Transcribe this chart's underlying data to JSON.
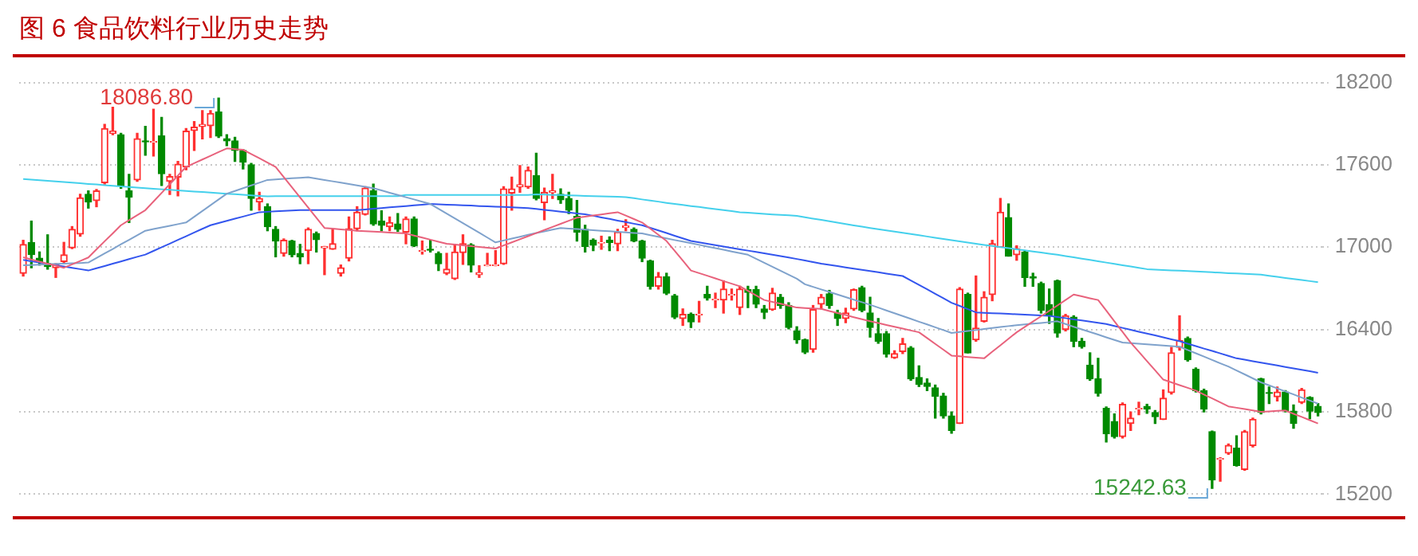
{
  "chart_data": {
    "type": "candlestick",
    "title": "图 6 食品饮料行业历史走势",
    "categories": [
      null,
      null,
      null,
      null,
      null,
      null,
      null,
      null,
      null,
      null,
      null,
      null,
      null,
      null,
      null,
      null,
      null,
      null,
      null,
      null,
      null,
      null,
      null,
      null,
      null,
      null,
      null,
      null,
      null,
      null,
      null,
      null,
      null,
      null,
      null,
      null,
      null,
      null,
      null,
      null,
      null,
      null,
      null,
      null,
      null,
      null,
      null,
      null,
      null,
      null,
      null,
      null,
      null,
      null,
      null,
      null,
      null,
      null,
      null,
      null,
      null,
      null,
      null,
      null,
      null,
      null,
      null,
      null,
      null,
      null,
      null,
      null,
      null,
      null,
      null,
      null,
      null,
      null,
      null,
      null,
      null,
      null,
      null,
      null,
      null,
      null,
      null,
      null,
      null,
      null,
      null,
      null,
      null,
      null,
      null,
      null,
      null,
      null,
      null,
      null,
      null,
      null,
      null,
      null,
      null,
      null,
      null,
      null,
      null,
      null,
      null,
      null,
      null,
      null,
      null,
      null,
      null,
      null,
      null,
      null,
      null,
      null,
      null,
      null,
      null,
      null,
      null,
      null,
      null,
      null,
      null,
      null,
      null,
      null,
      null,
      null,
      null,
      null,
      null,
      null,
      null,
      null,
      null,
      null,
      null,
      null,
      null,
      null,
      null,
      null,
      null,
      null,
      null,
      null,
      null,
      null,
      null,
      null,
      null,
      null
    ],
    "ohlc": [
      [
        16810,
        17050,
        16790,
        17020
      ],
      [
        17035,
        17190,
        16850,
        16946
      ],
      [
        16920,
        16965,
        16870,
        16890
      ],
      [
        16880,
        17090,
        16840,
        16860
      ],
      [
        16850,
        16880,
        16780,
        16870
      ],
      [
        16895,
        17035,
        16885,
        16945
      ],
      [
        16995,
        17150,
        16990,
        17130
      ],
      [
        17095,
        17385,
        17080,
        17360
      ],
      [
        17385,
        17410,
        17285,
        17330
      ],
      [
        17340,
        17420,
        17295,
        17410
      ],
      [
        17470,
        17895,
        17460,
        17865
      ],
      [
        17830,
        18020,
        17820,
        17845
      ],
      [
        17820,
        17830,
        17430,
        17445
      ],
      [
        17410,
        17530,
        17180,
        17365
      ],
      [
        17490,
        17830,
        17480,
        17790
      ],
      [
        17775,
        17880,
        17670,
        17768
      ],
      [
        17765,
        18005,
        17665,
        17770
      ],
      [
        17810,
        17945,
        17450,
        17535
      ],
      [
        17480,
        17530,
        17385,
        17515
      ],
      [
        17510,
        17625,
        17375,
        17605
      ],
      [
        17585,
        17865,
        17565,
        17845
      ],
      [
        17850,
        17915,
        17705,
        17875
      ],
      [
        17880,
        17995,
        17790,
        17895
      ],
      [
        17885,
        17995,
        17800,
        17975
      ],
      [
        17985,
        18086.8,
        17800,
        17810
      ],
      [
        17790,
        17820,
        17740,
        17775
      ],
      [
        17775,
        17800,
        17625,
        17705
      ],
      [
        17705,
        17710,
        17570,
        17620
      ],
      [
        17600,
        17610,
        17270,
        17355
      ],
      [
        17330,
        17400,
        17270,
        17355
      ],
      [
        17295,
        17315,
        17120,
        17150
      ],
      [
        17130,
        17150,
        16930,
        17045
      ],
      [
        16955,
        17060,
        16935,
        17050
      ],
      [
        17045,
        17050,
        16930,
        16945
      ],
      [
        16955,
        17020,
        16880,
        16930
      ],
      [
        16975,
        17140,
        16880,
        17130
      ],
      [
        17100,
        17110,
        16965,
        17055
      ],
      [
        16995,
        17005,
        16800,
        17005
      ],
      [
        16985,
        17130,
        16985,
        17025
      ],
      [
        16810,
        16870,
        16790,
        16850
      ],
      [
        16920,
        17220,
        16900,
        17135
      ],
      [
        17135,
        17295,
        17120,
        17255
      ],
      [
        17240,
        17440,
        17235,
        17430
      ],
      [
        17410,
        17460,
        17160,
        17170
      ],
      [
        17190,
        17265,
        17120,
        17160
      ],
      [
        17150,
        17220,
        17120,
        17180
      ],
      [
        17170,
        17245,
        17115,
        17130
      ],
      [
        17110,
        17220,
        17025,
        17205
      ],
      [
        17205,
        17220,
        17005,
        17010
      ],
      [
        16970,
        17045,
        16950,
        16975
      ],
      [
        16985,
        17050,
        16965,
        16978
      ],
      [
        16955,
        16965,
        16830,
        16880
      ],
      [
        16810,
        16955,
        16800,
        16840
      ],
      [
        16770,
        17020,
        16765,
        16965
      ],
      [
        16960,
        17090,
        16875,
        17025
      ],
      [
        17015,
        17025,
        16820,
        16870
      ],
      [
        16800,
        16865,
        16780,
        16815
      ],
      [
        16865,
        16955,
        16865,
        16870
      ],
      [
        16867,
        16975,
        16865,
        16872
      ],
      [
        16880,
        17440,
        16875,
        17425
      ],
      [
        17395,
        17510,
        17270,
        17425
      ],
      [
        17440,
        17595,
        17400,
        17455
      ],
      [
        17440,
        17585,
        17430,
        17560
      ],
      [
        17520,
        17685,
        17345,
        17355
      ],
      [
        17325,
        17430,
        17200,
        17400
      ],
      [
        17400,
        17530,
        17355,
        17410
      ],
      [
        17385,
        17425,
        17320,
        17345
      ],
      [
        17355,
        17400,
        17245,
        17270
      ],
      [
        17225,
        17340,
        17045,
        17110
      ],
      [
        17130,
        17160,
        16965,
        17005
      ],
      [
        17050,
        17060,
        16975,
        17015
      ],
      [
        17030,
        17080,
        16985,
        17035
      ],
      [
        17050,
        17075,
        16975,
        17035
      ],
      [
        17025,
        17130,
        16975,
        17110
      ],
      [
        17145,
        17200,
        17120,
        17155
      ],
      [
        17130,
        17140,
        17040,
        17045
      ],
      [
        17045,
        17050,
        16895,
        16920
      ],
      [
        16900,
        16905,
        16695,
        16715
      ],
      [
        16715,
        16815,
        16695,
        16785
      ],
      [
        16785,
        16810,
        16655,
        16665
      ],
      [
        16645,
        16655,
        16480,
        16490
      ],
      [
        16480,
        16550,
        16430,
        16510
      ],
      [
        16510,
        16520,
        16415,
        16455
      ],
      [
        16507,
        16605,
        16455,
        16512
      ],
      [
        16655,
        16715,
        16615,
        16630
      ],
      [
        16615,
        16665,
        16560,
        16620
      ],
      [
        16615,
        16755,
        16520,
        16695
      ],
      [
        16650,
        16695,
        16615,
        16655
      ],
      [
        16560,
        16715,
        16510,
        16695
      ],
      [
        16690,
        16715,
        16560,
        16670
      ],
      [
        16690,
        16715,
        16560,
        16585
      ],
      [
        16550,
        16575,
        16480,
        16525
      ],
      [
        16545,
        16700,
        16540,
        16665
      ],
      [
        16635,
        16655,
        16555,
        16575
      ],
      [
        16575,
        16595,
        16405,
        16415
      ],
      [
        16390,
        16420,
        16300,
        16325
      ],
      [
        16325,
        16330,
        16225,
        16235
      ],
      [
        16255,
        16575,
        16235,
        16545
      ],
      [
        16585,
        16655,
        16550,
        16635
      ],
      [
        16660,
        16685,
        16555,
        16575
      ],
      [
        16520,
        16540,
        16430,
        16480
      ],
      [
        16480,
        16555,
        16450,
        16520
      ],
      [
        16550,
        16695,
        16540,
        16690
      ],
      [
        16705,
        16715,
        16530,
        16540
      ],
      [
        16520,
        16635,
        16345,
        16415
      ],
      [
        16370,
        16480,
        16300,
        16315
      ],
      [
        16370,
        16385,
        16200,
        16220
      ],
      [
        16195,
        16245,
        16190,
        16225
      ],
      [
        16240,
        16335,
        16225,
        16295
      ],
      [
        16265,
        16275,
        16030,
        16040
      ],
      [
        16050,
        16135,
        15985,
        16000
      ],
      [
        16010,
        16040,
        15955,
        15985
      ],
      [
        15975,
        15995,
        15755,
        15915
      ],
      [
        15915,
        15935,
        15755,
        15770
      ],
      [
        15770,
        15800,
        15645,
        15665
      ],
      [
        15715,
        16705,
        15715,
        16695
      ],
      [
        16655,
        16665,
        16230,
        16230
      ],
      [
        16325,
        16790,
        16315,
        16410
      ],
      [
        16460,
        16675,
        16455,
        16635
      ],
      [
        16655,
        17050,
        16610,
        17025
      ],
      [
        17000,
        17355,
        17000,
        17255
      ],
      [
        17215,
        17315,
        16935,
        16935
      ],
      [
        16945,
        17010,
        16905,
        16990
      ],
      [
        16965,
        16975,
        16715,
        16780
      ],
      [
        16785,
        16810,
        16715,
        16775
      ],
      [
        16735,
        16745,
        16520,
        16540
      ],
      [
        16580,
        16695,
        16445,
        16500
      ],
      [
        16755,
        16760,
        16345,
        16375
      ],
      [
        16400,
        16510,
        16390,
        16500
      ],
      [
        16490,
        16500,
        16275,
        16315
      ],
      [
        16315,
        16335,
        16265,
        16275
      ],
      [
        16140,
        16230,
        16030,
        16040
      ],
      [
        16040,
        16190,
        15915,
        15935
      ],
      [
        15825,
        15835,
        15580,
        15640
      ],
      [
        15730,
        15785,
        15610,
        15620
      ],
      [
        15620,
        15865,
        15610,
        15855
      ],
      [
        15715,
        15800,
        15665,
        15755
      ],
      [
        15820,
        15870,
        15780,
        15825
      ],
      [
        15840,
        15855,
        15790,
        15820
      ],
      [
        15795,
        15810,
        15715,
        15765
      ],
      [
        15745,
        15960,
        15745,
        15900
      ],
      [
        15940,
        16270,
        15930,
        16230
      ],
      [
        16270,
        16500,
        16250,
        16320
      ],
      [
        16335,
        16345,
        16170,
        16180
      ],
      [
        16110,
        16120,
        15945,
        15955
      ],
      [
        15955,
        15965,
        15800,
        15820
      ],
      [
        15655,
        15660,
        15242.63,
        15305
      ],
      [
        15455,
        15465,
        15295,
        15460
      ],
      [
        15500,
        15565,
        15490,
        15555
      ],
      [
        15535,
        15625,
        15405,
        15410
      ],
      [
        15380,
        15665,
        15375,
        15655
      ],
      [
        15555,
        15755,
        15545,
        15745
      ],
      [
        16040,
        16045,
        15785,
        15795
      ],
      [
        15940,
        15980,
        15860,
        15935
      ],
      [
        15910,
        15980,
        15880,
        15945
      ],
      [
        15945,
        15955,
        15800,
        15810
      ],
      [
        15805,
        15850,
        15680,
        15715
      ],
      [
        15870,
        15970,
        15860,
        15960
      ],
      [
        15905,
        15910,
        15750,
        15805
      ],
      [
        15840,
        15860,
        15770,
        15795
      ]
    ],
    "series": [
      {
        "type": "line",
        "color": "#e8627c",
        "values": [
          16926,
          16910,
          16895,
          16880,
          16865,
          16850,
          16875,
          16900,
          16925,
          16984,
          17043,
          17101,
          17160,
          17197,
          17233,
          17270,
          17333,
          17396,
          17459,
          17522,
          17585,
          17612,
          17639,
          17666,
          17693,
          17720,
          17715,
          17710,
          17679,
          17648,
          17616,
          17585,
          17511,
          17437,
          17363,
          17288,
          17214,
          17140,
          17135,
          17130,
          17125,
          17120,
          17117,
          17113,
          17110,
          17107,
          17103,
          17100,
          17085,
          17070,
          17055,
          17040,
          17025,
          17019,
          17013,
          17008,
          17002,
          16996,
          16990,
          17013,
          17035,
          17058,
          17080,
          17103,
          17125,
          17148,
          17170,
          17193,
          17215,
          17223,
          17231,
          17239,
          17247,
          17255,
          17230,
          17205,
          17180,
          17135,
          17090,
          17045,
          16973,
          16902,
          16830,
          16811,
          16792,
          16773,
          16753,
          16734,
          16715,
          16682,
          16648,
          16615,
          16601,
          16588,
          16574,
          16560,
          16557,
          16553,
          16550,
          16535,
          16520,
          16505,
          16490,
          16475,
          16460,
          16447,
          16433,
          16420,
          16407,
          16393,
          16380,
          16338,
          16295,
          16253,
          16210,
          16205,
          16200,
          16195,
          16190,
          16238,
          16285,
          16333,
          16380,
          16419,
          16458,
          16497,
          16536,
          16575,
          16615,
          16655,
          16642,
          16628,
          16615,
          16538,
          16460,
          16383,
          16305,
          16238,
          16170,
          16103,
          16035,
          16015,
          15995,
          15975,
          15955,
          15926,
          15898,
          15869,
          15840,
          15830,
          15820,
          15810,
          15800,
          15803,
          15807,
          15810,
          15786,
          15763,
          15739,
          15715
        ]
      },
      {
        "type": "line",
        "color": "#7fa2cc",
        "values": [
          16868,
          16870,
          16873,
          16875,
          16878,
          16880,
          16883,
          16885,
          16888,
          16921,
          16954,
          16987,
          17021,
          17054,
          17087,
          17120,
          17132,
          17144,
          17156,
          17168,
          17180,
          17222,
          17264,
          17306,
          17348,
          17390,
          17410,
          17430,
          17450,
          17470,
          17490,
          17494,
          17498,
          17502,
          17506,
          17510,
          17500,
          17490,
          17480,
          17470,
          17460,
          17450,
          17440,
          17430,
          17414,
          17397,
          17381,
          17364,
          17348,
          17331,
          17315,
          17280,
          17245,
          17210,
          17175,
          17140,
          17105,
          17070,
          17035,
          17049,
          17063,
          17076,
          17090,
          17103,
          17115,
          17128,
          17140,
          17136,
          17132,
          17128,
          17124,
          17120,
          17116,
          17112,
          17108,
          17104,
          17100,
          17088,
          17076,
          17064,
          17052,
          17041,
          17029,
          17017,
          17005,
          16993,
          16981,
          16969,
          16957,
          16945,
          16916,
          16887,
          16858,
          16828,
          16799,
          16770,
          16730,
          16711,
          16692,
          16674,
          16655,
          16636,
          16617,
          16599,
          16580,
          16560,
          16539,
          16519,
          16498,
          16478,
          16457,
          16437,
          16416,
          16396,
          16375,
          16382,
          16389,
          16396,
          16404,
          16411,
          16418,
          16425,
          16431,
          16437,
          16443,
          16448,
          16454,
          16460,
          16440,
          16420,
          16401,
          16382,
          16363,
          16343,
          16324,
          16305,
          16301,
          16296,
          16292,
          16288,
          16284,
          16279,
          16275,
          16251,
          16227,
          16203,
          16178,
          16154,
          16130,
          16101,
          16073,
          16044,
          16015,
          15993,
          15971,
          15949,
          15927,
          15904,
          15882,
          15860
        ]
      },
      {
        "type": "line",
        "color": "#3355ee",
        "values": [
          16907,
          16897,
          16888,
          16878,
          16868,
          16859,
          16849,
          16840,
          16830,
          16847,
          16863,
          16880,
          16896,
          16913,
          16930,
          16946,
          16973,
          17000,
          17026,
          17053,
          17080,
          17107,
          17134,
          17160,
          17176,
          17192,
          17208,
          17223,
          17239,
          17255,
          17258,
          17261,
          17264,
          17267,
          17270,
          17270,
          17270,
          17270,
          17270,
          17270,
          17270,
          17270,
          17275,
          17280,
          17285,
          17290,
          17295,
          17300,
          17305,
          17310,
          17315,
          17313,
          17310,
          17308,
          17305,
          17303,
          17300,
          17298,
          17295,
          17293,
          17290,
          17288,
          17285,
          17279,
          17272,
          17266,
          17259,
          17253,
          17246,
          17240,
          17229,
          17217,
          17206,
          17194,
          17183,
          17171,
          17160,
          17141,
          17122,
          17103,
          17083,
          17064,
          17045,
          17035,
          17025,
          17015,
          17005,
          16995,
          16985,
          16975,
          16965,
          16955,
          16945,
          16935,
          16925,
          16914,
          16903,
          16891,
          16880,
          16871,
          16862,
          16853,
          16844,
          16835,
          16826,
          16817,
          16808,
          16799,
          16790,
          16758,
          16725,
          16693,
          16660,
          16628,
          16595,
          16572,
          16548,
          16525,
          16522,
          16519,
          16517,
          16514,
          16511,
          16508,
          16506,
          16503,
          16500,
          16491,
          16483,
          16474,
          16466,
          16457,
          16449,
          16440,
          16426,
          16412,
          16398,
          16384,
          16371,
          16357,
          16343,
          16329,
          16315,
          16297,
          16279,
          16261,
          16244,
          16226,
          16208,
          16190,
          16180,
          16169,
          16159,
          16148,
          16138,
          16127,
          16117,
          16106,
          16096,
          16085
        ]
      },
      {
        "type": "line",
        "color": "#44d0ec",
        "values": [
          17497,
          17493,
          17488,
          17484,
          17479,
          17475,
          17470,
          17466,
          17461,
          17457,
          17452,
          17448,
          17443,
          17439,
          17434,
          17430,
          17426,
          17422,
          17418,
          17414,
          17410,
          17406,
          17402,
          17398,
          17394,
          17390,
          17386,
          17382,
          17378,
          17374,
          17370,
          17372,
          17372,
          17372,
          17372,
          17372,
          17372,
          17372,
          17372,
          17372,
          17372,
          17372,
          17372,
          17372,
          17372,
          17372,
          17372,
          17380,
          17380,
          17380,
          17380,
          17380,
          17380,
          17380,
          17380,
          17380,
          17380,
          17380,
          17380,
          17380,
          17380,
          17380,
          17380,
          17385,
          17383,
          17381,
          17380,
          17378,
          17376,
          17374,
          17372,
          17370,
          17369,
          17367,
          17365,
          17357,
          17348,
          17340,
          17332,
          17323,
          17315,
          17308,
          17300,
          17293,
          17285,
          17278,
          17270,
          17263,
          17255,
          17251,
          17247,
          17243,
          17239,
          17236,
          17232,
          17228,
          17218,
          17208,
          17199,
          17189,
          17179,
          17169,
          17159,
          17150,
          17140,
          17131,
          17122,
          17113,
          17105,
          17096,
          17087,
          17078,
          17069,
          17060,
          17051,
          17043,
          17034,
          17025,
          17017,
          17009,
          17001,
          16993,
          16985,
          16977,
          16969,
          16961,
          16953,
          16945,
          16935,
          16926,
          16916,
          16907,
          16897,
          16888,
          16878,
          16869,
          16859,
          16850,
          16840,
          16837,
          16834,
          16831,
          16829,
          16826,
          16823,
          16820,
          16817,
          16814,
          16811,
          16809,
          16806,
          16803,
          16800,
          16792,
          16784,
          16776,
          16768,
          16761,
          16753,
          16745
        ]
      }
    ],
    "ylim": [
      15200,
      18200
    ],
    "yticks": [
      15200,
      15800,
      16400,
      17000,
      17600,
      18200
    ],
    "grid": "y",
    "annotations": [
      "18086.80",
      "15242.63"
    ]
  }
}
